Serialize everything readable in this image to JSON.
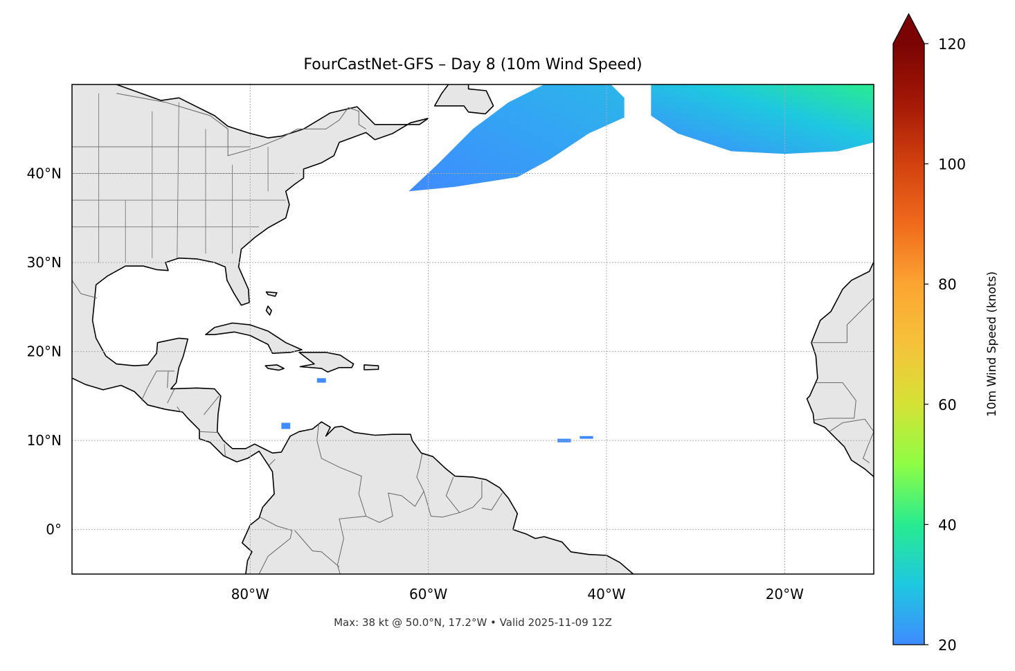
{
  "chart_data": {
    "type": "heatmap",
    "title": "FourCastNet-GFS – Day 8 (10m Wind Speed)",
    "footer": "Max: 38 kt @ 50.0°N, 17.2°W • Valid 2025-11-09 12Z",
    "projection": "PlateCarree",
    "lon_range": [
      -100,
      -10
    ],
    "lat_range": [
      -5,
      50
    ],
    "x_ticks": [
      {
        "value": -80,
        "label": "80°W"
      },
      {
        "value": -60,
        "label": "60°W"
      },
      {
        "value": -40,
        "label": "40°W"
      },
      {
        "value": -20,
        "label": "20°W"
      }
    ],
    "y_ticks": [
      {
        "value": 40,
        "label": "40°N"
      },
      {
        "value": 30,
        "label": "30°N"
      },
      {
        "value": 20,
        "label": "20°N"
      },
      {
        "value": 10,
        "label": "10°N"
      },
      {
        "value": 0,
        "label": "0°"
      }
    ],
    "grid": true,
    "colorbar": {
      "label": "10m Wind Speed (knots)",
      "range": [
        20,
        120
      ],
      "extend": "max",
      "ticks": [
        20,
        40,
        60,
        80,
        100,
        120
      ],
      "colormap": "turbo",
      "stops": [
        [
          "20",
          "#3f8bff"
        ],
        [
          "30",
          "#1ec8e0"
        ],
        [
          "40",
          "#28eb90"
        ],
        [
          "50",
          "#8efd45"
        ],
        [
          "60",
          "#d5e236"
        ],
        [
          "70",
          "#f6c23a"
        ],
        [
          "80",
          "#fba532"
        ],
        [
          "90",
          "#f06a1c"
        ],
        [
          "100",
          "#d2420f"
        ],
        [
          "110",
          "#a41806"
        ],
        [
          "120",
          "#7a0403"
        ]
      ]
    },
    "wind_regions": [
      {
        "description_speed_kt": [
          20,
          30
        ],
        "polygon": [
          [
            -62.2,
            38
          ],
          [
            -57,
            38.5
          ],
          [
            -50,
            39.6
          ],
          [
            -46.5,
            41.5
          ],
          [
            -42,
            44.5
          ],
          [
            -38,
            46.3
          ],
          [
            -38,
            48.5
          ],
          [
            -39.5,
            50
          ],
          [
            -47,
            50
          ],
          [
            -51,
            48
          ],
          [
            -55,
            45
          ],
          [
            -59,
            41
          ]
        ]
      },
      {
        "description_speed_kt": [
          22,
          38
        ],
        "polygon": [
          [
            -35,
            50
          ],
          [
            -35,
            46.5
          ],
          [
            -32,
            44.5
          ],
          [
            -26,
            42.5
          ],
          [
            -20,
            42.2
          ],
          [
            -14,
            42.5
          ],
          [
            -10,
            43.5
          ],
          [
            -10,
            50
          ]
        ]
      },
      {
        "description_speed_kt": [
          20,
          22
        ],
        "polygon": [
          [
            -45.5,
            10.2
          ],
          [
            -44,
            10.2
          ],
          [
            -44,
            9.8
          ],
          [
            -45.5,
            9.8
          ]
        ]
      },
      {
        "description_speed_kt": [
          20,
          22
        ],
        "polygon": [
          [
            -43,
            10.5
          ],
          [
            -41.5,
            10.5
          ],
          [
            -41.5,
            10.2
          ],
          [
            -43,
            10.2
          ]
        ]
      },
      {
        "description_speed_kt": [
          20,
          22
        ],
        "polygon": [
          [
            -72.5,
            17
          ],
          [
            -71.5,
            17
          ],
          [
            -71.5,
            16.5
          ],
          [
            -72.5,
            16.5
          ]
        ]
      },
      {
        "description_speed_kt": [
          20,
          22
        ],
        "polygon": [
          [
            -76.5,
            12
          ],
          [
            -75.5,
            12
          ],
          [
            -75.5,
            11.3
          ],
          [
            -76.5,
            11.3
          ]
        ]
      }
    ]
  }
}
